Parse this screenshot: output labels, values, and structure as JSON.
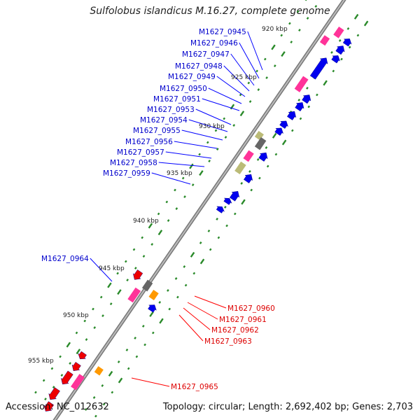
{
  "title": "Sulfolobus islandicus M.16.27, complete genome",
  "accession_text": "Accession: NC_012632",
  "topology_text": "Topology: circular; Length: 2,692,402 bp; Genes: 2,703",
  "colors": {
    "backbone": "#999999",
    "tick": "#2a8a2a",
    "forward_label": "#0000cc",
    "reverse_label": "#dd0000",
    "cds_forward": "#0000ee",
    "cds_reverse": "#ee0000",
    "rna": "#ff3399",
    "orange": "#ff9900",
    "olive": "#bbbb77",
    "gray": "#666666"
  },
  "scale_labels": [
    "920 kbp",
    "925 kbp",
    "930 kbp",
    "935 kbp",
    "940 kbp",
    "945 kbp",
    "950 kbp",
    "955 kbp"
  ],
  "forward_gene_labels": [
    "M1627_0945",
    "M1627_0946",
    "M1627_0947",
    "M1627_0948",
    "M1627_0949",
    "M1627_0950",
    "M1627_0951",
    "M1627_0953",
    "M1627_0954",
    "M1627_0955",
    "M1627_0956",
    "M1627_0957",
    "M1627_0958",
    "M1627_0959",
    "M1627_0964"
  ],
  "reverse_gene_labels": [
    "M1627_0960",
    "M1627_0961",
    "M1627_0962",
    "M1627_0963",
    "M1627_0965"
  ]
}
